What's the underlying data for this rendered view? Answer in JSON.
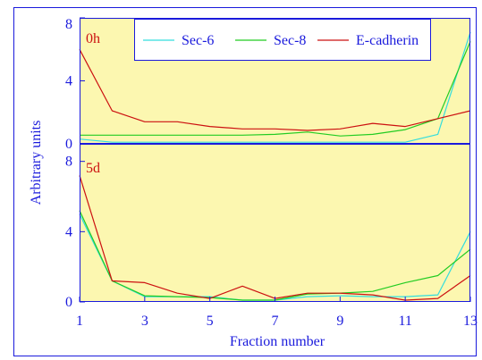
{
  "colors": {
    "frame": "#1a1adc",
    "plot_bg": "#fcf7b0",
    "tick_text": "#1a1adc",
    "panel_label": "#cc1111"
  },
  "chart_data": [
    {
      "type": "line",
      "panel_label": "0h",
      "x": [
        1,
        2,
        3,
        4,
        5,
        6,
        7,
        8,
        9,
        10,
        11,
        12,
        13
      ],
      "xlim": [
        1,
        13
      ],
      "ylim": [
        0,
        8
      ],
      "yticks": [
        0,
        4,
        8
      ],
      "legend": "top",
      "series": [
        {
          "name": "Sec-6",
          "color": "#33dddd",
          "values": [
            0.3,
            0.1,
            0.1,
            0.1,
            0.1,
            0.1,
            0.1,
            0.1,
            0.1,
            0.1,
            0.1,
            0.6,
            7.1
          ]
        },
        {
          "name": "Sec-8",
          "color": "#22cc22",
          "values": [
            0.55,
            0.55,
            0.55,
            0.55,
            0.55,
            0.55,
            0.6,
            0.75,
            0.5,
            0.6,
            0.9,
            1.6,
            6.5
          ]
        },
        {
          "name": "E-cadherin",
          "color": "#cc1111",
          "values": [
            6.0,
            2.1,
            1.4,
            1.4,
            1.1,
            0.95,
            0.95,
            0.85,
            0.95,
            1.3,
            1.1,
            1.6,
            2.1
          ]
        }
      ]
    },
    {
      "type": "line",
      "panel_label": "5d",
      "x": [
        1,
        2,
        3,
        4,
        5,
        6,
        7,
        8,
        9,
        10,
        11,
        12,
        13
      ],
      "xlim": [
        1,
        13
      ],
      "ylim": [
        0,
        9
      ],
      "yticks": [
        0,
        4,
        8
      ],
      "series": [
        {
          "name": "Sec-6",
          "color": "#33dddd",
          "values": [
            5.0,
            1.2,
            0.3,
            0.3,
            0.3,
            0.1,
            0.1,
            0.3,
            0.35,
            0.3,
            0.3,
            0.4,
            4.0
          ]
        },
        {
          "name": "Sec-8",
          "color": "#22cc22",
          "values": [
            5.2,
            1.2,
            0.35,
            0.3,
            0.25,
            0.1,
            0.1,
            0.45,
            0.5,
            0.6,
            1.1,
            1.5,
            3.0
          ]
        },
        {
          "name": "E-cadherin",
          "color": "#cc1111",
          "values": [
            7.2,
            1.2,
            1.1,
            0.5,
            0.2,
            0.9,
            0.2,
            0.5,
            0.5,
            0.4,
            0.1,
            0.2,
            1.5
          ]
        }
      ]
    }
  ],
  "xticks": [
    1,
    3,
    5,
    7,
    9,
    11,
    13
  ],
  "xlabel": "Fraction number",
  "ylabel": "Arbitrary units"
}
